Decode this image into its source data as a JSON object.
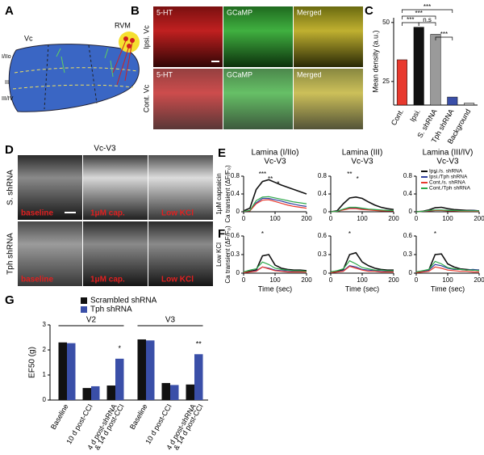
{
  "figure": {
    "panel_letters": [
      "A",
      "B",
      "C",
      "D",
      "E",
      "F",
      "G"
    ],
    "panel_a": {
      "labels": [
        "Vc",
        "RVM",
        "I/IIo",
        "III",
        "III/IV"
      ]
    },
    "panel_b": {
      "columns": [
        "5-HT",
        "GCaMP",
        "Merged"
      ],
      "rows": [
        "Ipsi. Vc",
        "Cont. Vc"
      ]
    },
    "panel_d": {
      "title": "Vc-V3",
      "rows": [
        "S. shRNA",
        "Tph shRNA"
      ],
      "columns": [
        "baseline",
        "1μM cap.",
        "Low KCl"
      ]
    }
  },
  "chart_data": [
    {
      "type": "bar",
      "ylabel": "Mean density (a.u.)",
      "categories": [
        "Cont.",
        "Ipsi.",
        "S. shRNA",
        "Tph shRNA",
        "Background"
      ],
      "values": [
        34.2,
        48,
        45,
        18.4,
        15.8
      ],
      "colors": [
        "#e8392e",
        "#111111",
        "#9a9a9a",
        "#3a4fa8",
        "#bbbbbb"
      ],
      "ylim": [
        15,
        52
      ],
      "yticks": [
        25,
        50
      ],
      "annotations": [
        "***",
        "***",
        "n.s",
        "***",
        "***"
      ]
    },
    {
      "type": "line",
      "title": [
        "Lamina (I/IIo)",
        "Vc-V3"
      ],
      "ylabel": [
        "1μM capsaicin",
        "Ca transient (ΔF/F₀)"
      ],
      "x": [
        0,
        20,
        40,
        60,
        80,
        100,
        120,
        140,
        160,
        180,
        200
      ],
      "xlim": [
        0,
        200
      ],
      "xticks": [
        0,
        100,
        200
      ],
      "ylim": [
        0,
        0.8
      ],
      "yticks": [
        0,
        0.4,
        0.8
      ],
      "annotations": [
        "***",
        "**",
        "*"
      ],
      "series": [
        {
          "name": "Ipsi./s. shRNA",
          "color": "#111111",
          "values": [
            0.02,
            0.08,
            0.5,
            0.68,
            0.72,
            0.66,
            0.6,
            0.55,
            0.5,
            0.45,
            0.4
          ]
        },
        {
          "name": "Ipsi./Tph shRNA",
          "color": "#2f3f9e",
          "values": [
            0.01,
            0.02,
            0.2,
            0.3,
            0.3,
            0.27,
            0.24,
            0.2,
            0.17,
            0.14,
            0.12
          ]
        },
        {
          "name": "Cont./s. shRNA",
          "color": "#e8392e",
          "values": [
            0.01,
            0.02,
            0.18,
            0.26,
            0.27,
            0.23,
            0.19,
            0.15,
            0.12,
            0.1,
            0.08
          ]
        },
        {
          "name": "Cont./Tph shRNA",
          "color": "#2ea84a",
          "values": [
            0.01,
            0.03,
            0.25,
            0.33,
            0.34,
            0.31,
            0.28,
            0.25,
            0.22,
            0.2,
            0.18
          ]
        }
      ]
    },
    {
      "type": "line",
      "title": [
        "Lamina (III)",
        "Vc-V3"
      ],
      "x": [
        0,
        20,
        40,
        60,
        80,
        100,
        120,
        140,
        160,
        180,
        200
      ],
      "xlim": [
        0,
        200
      ],
      "xticks": [
        0,
        100,
        200
      ],
      "ylim": [
        0,
        0.8
      ],
      "yticks": [
        0,
        0.4,
        0.8
      ],
      "annotations": [
        "**",
        "*"
      ],
      "series": [
        {
          "name": "Ipsi./s. shRNA",
          "color": "#111111",
          "values": [
            0,
            0.02,
            0.18,
            0.31,
            0.33,
            0.3,
            0.22,
            0.15,
            0.1,
            0.07,
            0.05
          ]
        },
        {
          "name": "Ipsi./Tph shRNA",
          "color": "#2f3f9e",
          "values": [
            0,
            0.01,
            0.05,
            0.08,
            0.08,
            0.07,
            0.05,
            0.04,
            0.03,
            0.03,
            0.02
          ]
        },
        {
          "name": "Cont./s. shRNA",
          "color": "#e8392e",
          "values": [
            0,
            0.01,
            0.04,
            0.07,
            0.07,
            0.05,
            0.04,
            0.03,
            0.02,
            0.02,
            0.02
          ]
        },
        {
          "name": "Cont./Tph shRNA",
          "color": "#2ea84a",
          "values": [
            0,
            0.01,
            0.06,
            0.1,
            0.1,
            0.08,
            0.06,
            0.05,
            0.04,
            0.03,
            0.03
          ]
        }
      ]
    },
    {
      "type": "line",
      "title": [
        "Lamina (III/IV)",
        "Vc-V3"
      ],
      "legend": "upper right",
      "x": [
        0,
        20,
        40,
        60,
        80,
        100,
        120,
        140,
        160,
        180,
        200
      ],
      "xlim": [
        0,
        200
      ],
      "xticks": [
        0,
        100,
        200
      ],
      "ylim": [
        0,
        0.8
      ],
      "yticks": [
        0,
        0.4,
        0.8
      ],
      "annotations": [
        "*"
      ],
      "series": [
        {
          "name": "Ipsi./s. shRNA",
          "color": "#111111",
          "values": [
            0,
            0.01,
            0.04,
            0.09,
            0.1,
            0.07,
            0.05,
            0.04,
            0.03,
            0.03,
            0.02
          ]
        },
        {
          "name": "Ipsi./Tph shRNA",
          "color": "#2f3f9e",
          "values": [
            0,
            0.01,
            0.02,
            0.03,
            0.03,
            0.03,
            0.02,
            0.02,
            0.02,
            0.03,
            0.02
          ]
        },
        {
          "name": "Cont./s. shRNA",
          "color": "#e8392e",
          "values": [
            0,
            0.01,
            0.02,
            0.03,
            0.03,
            0.02,
            0.02,
            0.01,
            0.01,
            0.01,
            0.01
          ]
        },
        {
          "name": "Cont./Tph shRNA",
          "color": "#2ea84a",
          "values": [
            0,
            0.01,
            0.03,
            0.04,
            0.04,
            0.03,
            0.03,
            0.02,
            0.02,
            0.02,
            0.02
          ]
        }
      ]
    },
    {
      "type": "line",
      "ylabel": [
        "Low KCl",
        "Ca transient (ΔF/F₀)"
      ],
      "xlabel": "Time (sec)",
      "x": [
        0,
        20,
        40,
        60,
        80,
        100,
        120,
        140,
        160,
        180,
        200
      ],
      "xlim": [
        0,
        200
      ],
      "xticks": [
        0,
        100,
        200
      ],
      "ylim": [
        0,
        0.6
      ],
      "yticks": [
        0,
        0.3,
        0.6
      ],
      "annotations": [
        "*"
      ],
      "series": [
        {
          "name": "Ipsi./s. shRNA",
          "color": "#111111",
          "values": [
            0.02,
            0.03,
            0.05,
            0.28,
            0.3,
            0.13,
            0.08,
            0.06,
            0.05,
            0.05,
            0.04
          ]
        },
        {
          "name": "Ipsi./Tph shRNA",
          "color": "#2f3f9e",
          "values": [
            0.01,
            0.02,
            0.04,
            0.1,
            0.08,
            0.05,
            0.04,
            0.04,
            0.03,
            0.03,
            0.03
          ]
        },
        {
          "name": "Cont./s. shRNA",
          "color": "#e8392e",
          "values": [
            0.01,
            0.02,
            0.03,
            0.1,
            0.07,
            0.04,
            0.03,
            0.02,
            0.02,
            0.02,
            0.02
          ]
        },
        {
          "name": "Cont./Tph shRNA",
          "color": "#2ea84a",
          "values": [
            0.02,
            0.05,
            0.07,
            0.18,
            0.14,
            0.08,
            0.06,
            0.05,
            0.04,
            0.04,
            0.03
          ]
        }
      ]
    },
    {
      "type": "line",
      "xlabel": "Time (sec)",
      "x": [
        0,
        20,
        40,
        60,
        80,
        100,
        120,
        140,
        160,
        180,
        200
      ],
      "xlim": [
        0,
        200
      ],
      "xticks": [
        0,
        100,
        200
      ],
      "ylim": [
        0,
        0.6
      ],
      "yticks": [
        0,
        0.3,
        0.6
      ],
      "annotations": [
        "*"
      ],
      "series": [
        {
          "name": "Ipsi./s. shRNA",
          "color": "#111111",
          "values": [
            0.02,
            0.03,
            0.06,
            0.3,
            0.33,
            0.18,
            0.12,
            0.08,
            0.06,
            0.05,
            0.05
          ]
        },
        {
          "name": "Ipsi./Tph shRNA",
          "color": "#2f3f9e",
          "values": [
            0.01,
            0.02,
            0.04,
            0.12,
            0.1,
            0.06,
            0.05,
            0.04,
            0.04,
            0.03,
            0.03
          ]
        },
        {
          "name": "Cont./s. shRNA",
          "color": "#e8392e",
          "values": [
            0.01,
            0.02,
            0.03,
            0.11,
            0.08,
            0.05,
            0.03,
            0.03,
            0.02,
            0.02,
            0.02
          ]
        },
        {
          "name": "Cont./Tph shRNA",
          "color": "#2ea84a",
          "values": [
            0.02,
            0.04,
            0.07,
            0.2,
            0.15,
            0.09,
            0.07,
            0.05,
            0.05,
            0.04,
            0.04
          ]
        }
      ]
    },
    {
      "type": "line",
      "xlabel": "Time (sec)",
      "x": [
        0,
        20,
        40,
        60,
        80,
        100,
        120,
        140,
        160,
        180,
        200
      ],
      "xlim": [
        0,
        200
      ],
      "xticks": [
        0,
        100,
        200
      ],
      "ylim": [
        0,
        0.6
      ],
      "yticks": [
        0,
        0.3,
        0.6
      ],
      "annotations": [
        "*"
      ],
      "series": [
        {
          "name": "Ipsi./s. shRNA",
          "color": "#111111",
          "values": [
            0.02,
            0.03,
            0.05,
            0.3,
            0.31,
            0.15,
            0.1,
            0.07,
            0.06,
            0.05,
            0.05
          ]
        },
        {
          "name": "Ipsi./Tph shRNA",
          "color": "#2f3f9e",
          "values": [
            0.02,
            0.03,
            0.05,
            0.14,
            0.12,
            0.08,
            0.06,
            0.06,
            0.05,
            0.06,
            0.05
          ]
        },
        {
          "name": "Cont./s. shRNA",
          "color": "#e8392e",
          "values": [
            0.01,
            0.02,
            0.03,
            0.1,
            0.08,
            0.05,
            0.04,
            0.03,
            0.03,
            0.02,
            0.02
          ]
        },
        {
          "name": "Cont./Tph shRNA",
          "color": "#2ea84a",
          "values": [
            0.02,
            0.04,
            0.06,
            0.19,
            0.15,
            0.09,
            0.07,
            0.06,
            0.05,
            0.05,
            0.04
          ]
        }
      ]
    },
    {
      "type": "grouped-bar",
      "ylabel": "EF50 (g)",
      "groups": [
        "V2",
        "V3"
      ],
      "categories": [
        [
          "Baseline"
        ],
        [
          "10 d post-CCI"
        ],
        [
          "4 d post-shRNA",
          "& 14 d post-CCI"
        ],
        [
          "Baseline"
        ],
        [
          "10 d post-CCI"
        ],
        [
          "4 d post-shRNA",
          "& 14 d post-CCI"
        ]
      ],
      "ylim": [
        0,
        3
      ],
      "yticks": [
        0,
        1,
        2,
        3
      ],
      "legend": "upper center",
      "annotations": [
        "*",
        "**"
      ],
      "series": [
        {
          "name": "Scrambled shRNA",
          "color": "#111111",
          "values": [
            2.3,
            0.48,
            0.58,
            2.42,
            0.68,
            0.62
          ]
        },
        {
          "name": "Tph shRNA",
          "color": "#3a4fa8",
          "values": [
            2.27,
            0.55,
            1.65,
            2.38,
            0.6,
            1.83
          ]
        }
      ]
    }
  ]
}
